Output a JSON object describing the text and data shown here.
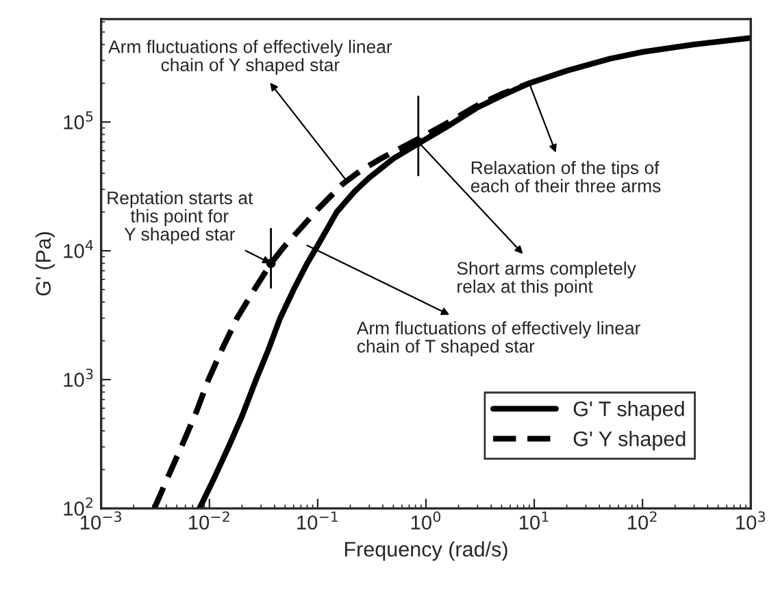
{
  "chart_data": {
    "type": "line",
    "xlabel": "Frequency (rad/s)",
    "ylabel": "G' (Pa)",
    "log": "xy",
    "xlim": [
      0.001,
      1000
    ],
    "ylim": [
      100,
      630000
    ],
    "xticks": [
      {
        "value": 0.001,
        "label": "10$^{−3}$"
      },
      {
        "value": 0.01,
        "label": "10$^{−2}$"
      },
      {
        "value": 0.1,
        "label": "10$^{−1}$"
      },
      {
        "value": 1,
        "label": "10$^{0}$"
      },
      {
        "value": 10,
        "label": "10$^{1}$"
      },
      {
        "value": 100,
        "label": "10$^{2}$"
      },
      {
        "value": 1000,
        "label": "10$^{3}$"
      }
    ],
    "yticks": [
      {
        "value": 100,
        "label": "10$^{2}$"
      },
      {
        "value": 1000,
        "label": "10$^{3}$"
      },
      {
        "value": 10000,
        "label": "10$^{4}$"
      },
      {
        "value": 100000,
        "label": "10$^{5}$"
      }
    ],
    "grid": false,
    "legend": "bottom right",
    "series": [
      {
        "name": "G' T shaped",
        "color": "#000000",
        "line_style": "solid",
        "x": [
          0.0081,
          0.011,
          0.015,
          0.02,
          0.027,
          0.035,
          0.045,
          0.06,
          0.08,
          0.1,
          0.15,
          0.22,
          0.3,
          0.5,
          0.9,
          1.5,
          3,
          5,
          9,
          20,
          50,
          100,
          300,
          1000
        ],
        "values": [
          100,
          170,
          300,
          520,
          1000,
          1700,
          3000,
          5000,
          8000,
          11000,
          20000,
          29000,
          37000,
          52000,
          70000,
          90000,
          130000,
          160000,
          200000,
          250000,
          310000,
          350000,
          400000,
          450000
        ]
      },
      {
        "name": "G' Y shaped",
        "color": "#000000",
        "line_style": "dashed",
        "x": [
          0.0031,
          0.0042,
          0.0055,
          0.0075,
          0.0098,
          0.013,
          0.018,
          0.026,
          0.037,
          0.05,
          0.07,
          0.1,
          0.17,
          0.25,
          0.4,
          0.9,
          1.5,
          3,
          5,
          9
        ],
        "values": [
          100,
          180,
          300,
          550,
          1000,
          1700,
          3000,
          5000,
          8000,
          11000,
          15000,
          21000,
          33000,
          42000,
          53000,
          76000,
          96000,
          135000,
          165000,
          200000
        ]
      },
      {
        "type": "scatter",
        "marker": "circle",
        "color": "#000000",
        "x": [
          0.037,
          0.85
        ],
        "values": [
          8000,
          70000
        ],
        "errors": [
          [
            5100,
            15000
          ],
          [
            38000,
            160000
          ]
        ]
      }
    ],
    "annotations": [
      {
        "text": "Arm fluctuations of effectively linear\nchain of Y shaped star",
        "x": 0.18,
        "y": 36000
      },
      {
        "text": "Reptation starts at\nthis point for\nY shaped star",
        "x": 0.037,
        "y": 8000
      },
      {
        "text": "Arm fluctuations of effectively linear\nchain of T shaped star",
        "x": 0.08,
        "y": 11000
      },
      {
        "text": "Short arms completely\nrelax at this point",
        "x": 0.85,
        "y": 70000
      },
      {
        "text": "Relaxation of the tips of\neach of their three arms",
        "x": 9,
        "y": 200000
      }
    ]
  }
}
